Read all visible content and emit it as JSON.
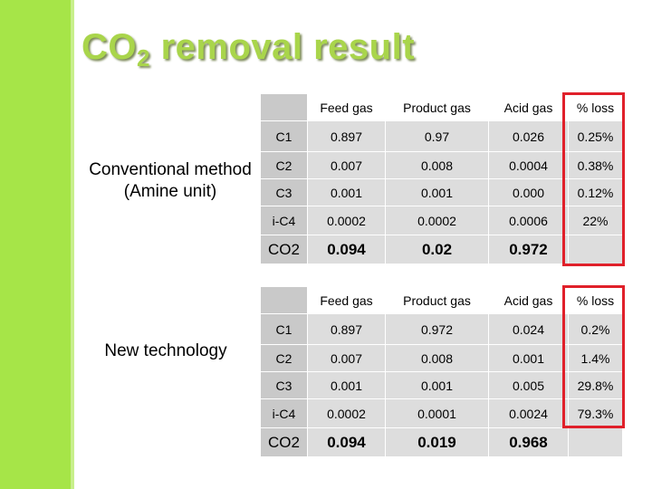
{
  "slide": {
    "title_main": "CO",
    "title_sub": "2",
    "title_rest": " removal result"
  },
  "section1": {
    "label_line1": "Conventional method",
    "label_line2": "(Amine unit)",
    "headers": [
      "Feed gas",
      "Product gas",
      "Acid gas",
      "% loss"
    ],
    "rows": [
      {
        "component": "C1",
        "feed": "0.897",
        "product": "0.97",
        "acid": "0.026",
        "loss": "0.25%"
      },
      {
        "component": "C2",
        "feed": "0.007",
        "product": "0.008",
        "acid": "0.0004",
        "loss": "0.38%"
      },
      {
        "component": "C3",
        "feed": "0.001",
        "product": "0.001",
        "acid": "0.000",
        "loss": "0.12%"
      },
      {
        "component": "i-C4",
        "feed": "0.0002",
        "product": "0.0002",
        "acid": "0.0006",
        "loss": "22%"
      },
      {
        "component": "CO2",
        "feed": "0.094",
        "product": "0.02",
        "acid": "0.972",
        "loss": ""
      }
    ]
  },
  "section2": {
    "label_line1": "New technology",
    "headers": [
      "Feed gas",
      "Product gas",
      "Acid gas",
      "% loss"
    ],
    "rows": [
      {
        "component": "C1",
        "feed": "0.897",
        "product": "0.972",
        "acid": "0.024",
        "loss": "0.2%"
      },
      {
        "component": "C2",
        "feed": "0.007",
        "product": "0.008",
        "acid": "0.001",
        "loss": "1.4%"
      },
      {
        "component": "C3",
        "feed": "0.001",
        "product": "0.001",
        "acid": "0.005",
        "loss": "29.8%"
      },
      {
        "component": "i-C4",
        "feed": "0.0002",
        "product": "0.0001",
        "acid": "0.0024",
        "loss": "79.3%"
      },
      {
        "component": "CO2",
        "feed": "0.094",
        "product": "0.019",
        "acid": "0.968",
        "loss": ""
      }
    ]
  },
  "colors": {
    "accent_green": "#a6e548",
    "title_green": "#a9d54b",
    "highlight_red": "#e0202a",
    "cell_gray": "#dddddd",
    "header_gray": "#c9c9c9"
  }
}
